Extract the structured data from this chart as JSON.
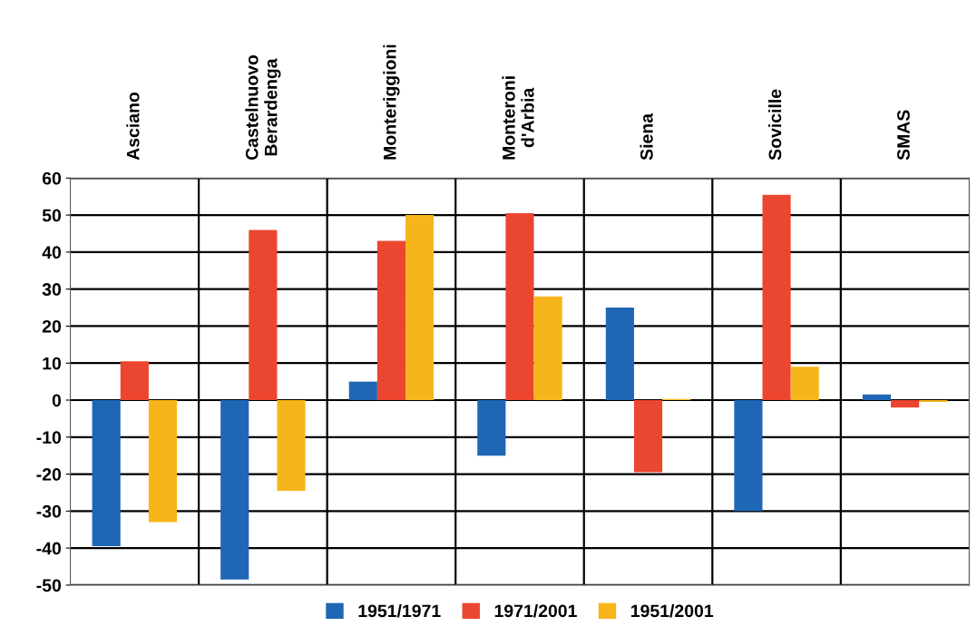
{
  "chart_data": {
    "type": "bar",
    "categories": [
      "Asciano",
      "Castelnuovo\nBerardenga",
      "Monteriggioni",
      "Monteroni\nd'Arbia",
      "Siena",
      "Sovicille",
      "SMAS"
    ],
    "series": [
      {
        "name": "1951/1971",
        "color": "#1f66b5",
        "values": [
          -39.5,
          -48.5,
          5,
          -15,
          25,
          -30,
          1.5
        ]
      },
      {
        "name": "1971/2001",
        "color": "#ea4630",
        "values": [
          10.5,
          46,
          43,
          50.5,
          -19.5,
          55.5,
          -2
        ]
      },
      {
        "name": "1951/2001",
        "color": "#f7b51c",
        "values": [
          -33,
          -24.5,
          50,
          28,
          0.3,
          9,
          -0.5
        ]
      }
    ],
    "ylim": [
      -50,
      60
    ],
    "yticks": [
      -50,
      -40,
      -30,
      -20,
      -10,
      0,
      10,
      20,
      30,
      40,
      50,
      60
    ],
    "grid": true,
    "legend": "bottom"
  }
}
